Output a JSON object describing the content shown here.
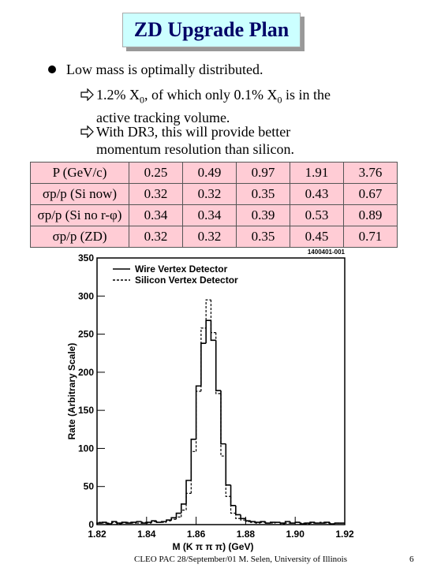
{
  "header": {
    "title": "ZD Upgrade Plan"
  },
  "bullets": [
    {
      "text": "Low mass is optimally distributed.",
      "sub": [
        {
          "parts": [
            "1.2% X",
            "0",
            ", of which only 0.1% X",
            "0",
            " is in the active tracking volume."
          ]
        },
        {
          "parts": [
            "With DR3, this will provide better momentum resolution than silicon."
          ]
        }
      ]
    }
  ],
  "table": {
    "rows": [
      [
        "P (GeV/c)",
        "0.25",
        "0.49",
        "0.97",
        "1.91",
        "3.76"
      ],
      [
        "σp/p (Si now)",
        "0.32",
        "0.32",
        "0.35",
        "0.43",
        "0.67"
      ],
      [
        "σp/p (Si no r-φ)",
        "0.34",
        "0.34",
        "0.39",
        "0.53",
        "0.89"
      ],
      [
        "σp/p (ZD)",
        "0.32",
        "0.32",
        "0.35",
        "0.45",
        "0.71"
      ]
    ]
  },
  "chart_data": {
    "type": "histogram",
    "x_label": "M (K π π π) (GeV)",
    "y_label": "Rate (Arbitrary Scale)",
    "annotation": "1400401-001",
    "bins": [
      1.82,
      1.822,
      1.824,
      1.826,
      1.828,
      1.83,
      1.832,
      1.834,
      1.836,
      1.838,
      1.84,
      1.842,
      1.844,
      1.846,
      1.848,
      1.85,
      1.852,
      1.854,
      1.856,
      1.858,
      1.86,
      1.862,
      1.864,
      1.866,
      1.868,
      1.87,
      1.872,
      1.874,
      1.876,
      1.878,
      1.88,
      1.882,
      1.884,
      1.886,
      1.888,
      1.89,
      1.892,
      1.894,
      1.896,
      1.898,
      1.9,
      1.902,
      1.904,
      1.906,
      1.908,
      1.91,
      1.912,
      1.914,
      1.916,
      1.918,
      1.92
    ],
    "series": [
      {
        "name": "Wire Vertex Detector",
        "color": "#000000",
        "linestyle": "solid",
        "values": [
          2,
          3,
          1,
          4,
          2,
          3,
          2,
          3,
          4,
          2,
          3,
          5,
          3,
          4,
          6,
          9,
          15,
          27,
          58,
          112,
          182,
          238,
          268,
          242,
          176,
          106,
          52,
          25,
          13,
          8,
          5,
          4,
          3,
          4,
          2,
          3,
          3,
          2,
          4,
          2,
          3,
          1,
          2,
          3,
          2,
          2,
          3,
          1,
          2,
          2
        ]
      },
      {
        "name": "Silicon Vertex Detector",
        "color": "#000000",
        "linestyle": "dashed",
        "values": [
          3,
          2,
          2,
          3,
          1,
          2,
          3,
          2,
          2,
          3,
          2,
          4,
          3,
          3,
          5,
          7,
          10,
          19,
          41,
          96,
          175,
          258,
          295,
          252,
          172,
          90,
          37,
          15,
          8,
          6,
          4,
          3,
          2,
          3,
          2,
          2,
          3,
          1,
          2,
          2,
          3,
          2,
          1,
          2,
          2,
          3,
          2,
          1,
          2,
          2
        ]
      }
    ],
    "xlim": [
      1.82,
      1.92
    ],
    "ylim": [
      0,
      350
    ],
    "xticks": [
      1.82,
      1.84,
      1.86,
      1.88,
      {
        "value": 1.9,
        "label": "1.90"
      },
      1.92
    ],
    "yticks": [
      0,
      50,
      100,
      150,
      200,
      250,
      300,
      350
    ],
    "legend": "upper left"
  },
  "footer": {
    "text": "CLEO PAC 28/September/01 M. Selen, University of Illinois",
    "page": "6"
  }
}
